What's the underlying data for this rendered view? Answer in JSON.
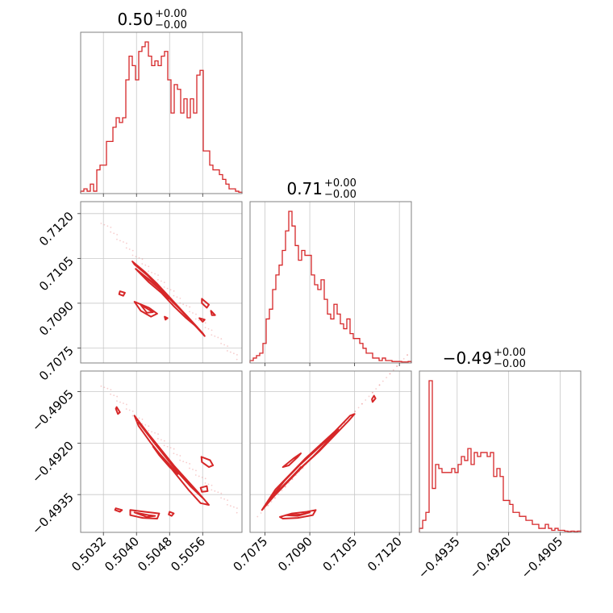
{
  "chart_data": {
    "type": "corner",
    "color": "#d62728",
    "parameters": [
      {
        "title": "0.50",
        "title_plus": "+0.00",
        "title_minus": "−0.00",
        "range": [
          0.50265,
          0.50655
        ],
        "ticks": [
          0.5032,
          0.504,
          0.5048,
          0.5056
        ],
        "tick_labels": [
          "0.5032",
          "0.5040",
          "0.5048",
          "0.5056"
        ],
        "hist_counts": [
          0.5,
          1,
          0.5,
          2,
          0.5,
          5,
          6,
          6,
          11,
          11,
          14,
          16,
          15,
          16,
          24,
          29,
          27,
          24,
          30,
          31,
          32,
          29,
          27,
          28,
          27,
          29,
          30,
          24,
          17,
          23,
          22,
          17,
          20,
          16,
          20,
          17,
          25,
          26,
          9,
          9,
          6,
          5,
          5,
          4,
          3,
          2,
          1,
          1,
          0.5,
          0.3
        ]
      },
      {
        "title": "0.71",
        "title_plus": "+0.00",
        "title_minus": "−0.00",
        "range": [
          0.707,
          0.7124
        ],
        "ticks": [
          0.7075,
          0.709,
          0.7105,
          0.712
        ],
        "tick_labels": [
          "0.7075",
          "0.7090",
          "0.7105",
          "0.7120"
        ],
        "hist_counts": [
          0.5,
          1,
          1.5,
          2,
          4,
          9,
          11,
          15,
          18,
          20,
          23,
          27,
          31,
          28,
          24,
          21,
          23,
          22,
          22,
          18,
          16,
          15,
          17,
          13,
          10,
          9,
          12,
          10,
          8,
          7,
          9,
          6,
          5,
          5,
          4,
          3,
          2,
          2,
          1,
          1,
          0.5,
          1,
          0.5,
          0.5,
          0.3,
          0.3,
          0.3,
          0.2,
          0.2,
          0.3
        ]
      },
      {
        "title": "−0.49",
        "title_plus": "+0.00",
        "title_minus": "−0.00",
        "range": [
          -0.4946,
          -0.4899
        ],
        "ticks": [
          -0.4935,
          -0.492,
          -0.4905
        ],
        "tick_labels": [
          "−0.4935",
          "−0.4920",
          "−0.4905"
        ],
        "hist_counts": [
          1,
          3,
          5,
          38,
          11,
          17,
          16,
          15,
          15,
          15,
          16,
          15,
          17,
          19,
          18,
          21,
          17,
          20,
          19,
          20,
          20,
          19,
          20,
          14,
          16,
          14,
          8,
          8,
          7,
          5,
          5,
          4,
          4,
          3,
          3,
          2,
          2,
          1,
          1,
          2,
          1,
          0.5,
          1,
          0.5,
          0.5,
          0.3,
          0.2,
          0.3,
          0.2,
          0.3
        ]
      }
    ],
    "pairs": [
      {
        "x_index": 0,
        "y_index": 1,
        "scatter_line": [
          [
            0.50318,
            0.71172
          ],
          [
            0.50645,
            0.70715
          ]
        ],
        "contours": [
          [
            [
              0.5039,
              0.7104
            ],
            [
              0.5042,
              0.71005
            ],
            [
              0.5045,
              0.70965
            ],
            [
              0.5048,
              0.7092
            ],
            [
              0.5051,
              0.70875
            ],
            [
              0.5054,
              0.7083
            ],
            [
              0.5056,
              0.708
            ],
            [
              0.50565,
              0.7079
            ],
            [
              0.50545,
              0.7082
            ],
            [
              0.50515,
              0.70865
            ],
            [
              0.50485,
              0.7091
            ],
            [
              0.50455,
              0.70955
            ],
            [
              0.50425,
              0.70995
            ],
            [
              0.50395,
              0.7103
            ],
            [
              0.5039,
              0.7104
            ]
          ],
          [
            [
              0.50398,
              0.71015
            ],
            [
              0.5043,
              0.7098
            ],
            [
              0.5046,
              0.70945
            ],
            [
              0.5049,
              0.709
            ],
            [
              0.5052,
              0.7086
            ],
            [
              0.50548,
              0.70818
            ],
            [
              0.5052,
              0.7085
            ],
            [
              0.5049,
              0.7089
            ],
            [
              0.5046,
              0.70935
            ],
            [
              0.5043,
              0.7097
            ],
            [
              0.50398,
              0.71015
            ]
          ],
          [
            [
              0.5042,
              0.7099
            ],
            [
              0.5045,
              0.70955
            ],
            [
              0.50478,
              0.70915
            ],
            [
              0.5047,
              0.7093
            ],
            [
              0.50445,
              0.7096
            ],
            [
              0.5042,
              0.7099
            ]
          ],
          [
            [
              0.5036,
              0.7094
            ],
            [
              0.50372,
              0.70935
            ],
            [
              0.50368,
              0.70925
            ],
            [
              0.50358,
              0.7093
            ],
            [
              0.5036,
              0.7094
            ]
          ],
          [
            [
              0.50395,
              0.70905
            ],
            [
              0.5043,
              0.70885
            ],
            [
              0.5045,
              0.70865
            ],
            [
              0.50435,
              0.70855
            ],
            [
              0.5041,
              0.70875
            ],
            [
              0.50395,
              0.70905
            ]
          ],
          [
            [
              0.5041,
              0.70895
            ],
            [
              0.5044,
              0.7087
            ],
            [
              0.50425,
              0.70868
            ],
            [
              0.5041,
              0.70895
            ]
          ],
          [
            [
              0.50468,
              0.70855
            ],
            [
              0.50475,
              0.7085
            ],
            [
              0.5047,
              0.70845
            ],
            [
              0.50468,
              0.70855
            ]
          ],
          [
            [
              0.50558,
              0.70915
            ],
            [
              0.50575,
              0.70895
            ],
            [
              0.5057,
              0.70885
            ],
            [
              0.50558,
              0.709
            ],
            [
              0.50558,
              0.70915
            ]
          ],
          [
            [
              0.5058,
              0.70875
            ],
            [
              0.5059,
              0.7086
            ],
            [
              0.50582,
              0.7086
            ],
            [
              0.5058,
              0.70875
            ]
          ],
          [
            [
              0.50552,
              0.7085
            ],
            [
              0.50565,
              0.70845
            ],
            [
              0.5056,
              0.70838
            ],
            [
              0.50552,
              0.7085
            ]
          ]
        ]
      },
      {
        "x_index": 0,
        "y_index": 2,
        "scatter_line": [
          [
            0.50318,
            -0.4903
          ],
          [
            0.50645,
            -0.494
          ]
        ],
        "contours": [
          [
            [
              0.50395,
              -0.4912
            ],
            [
              0.5043,
              -0.49175
            ],
            [
              0.5046,
              -0.4922
            ],
            [
              0.5049,
              -0.49265
            ],
            [
              0.5052,
              -0.49305
            ],
            [
              0.5055,
              -0.49345
            ],
            [
              0.50575,
              -0.4938
            ],
            [
              0.50555,
              -0.49375
            ],
            [
              0.50525,
              -0.49335
            ],
            [
              0.50495,
              -0.4929
            ],
            [
              0.50465,
              -0.49245
            ],
            [
              0.50435,
              -0.492
            ],
            [
              0.50405,
              -0.4915
            ],
            [
              0.50395,
              -0.4912
            ]
          ],
          [
            [
              0.50405,
              -0.4914
            ],
            [
              0.5044,
              -0.4919
            ],
            [
              0.5047,
              -0.49235
            ],
            [
              0.505,
              -0.4928
            ],
            [
              0.5053,
              -0.4932
            ],
            [
              0.5056,
              -0.4936
            ],
            [
              0.5053,
              -0.49325
            ],
            [
              0.505,
              -0.49285
            ],
            [
              0.5047,
              -0.4924
            ],
            [
              0.5044,
              -0.49195
            ],
            [
              0.50405,
              -0.4914
            ]
          ],
          [
            [
              0.5044,
              -0.4921
            ],
            [
              0.5047,
              -0.4925
            ],
            [
              0.505,
              -0.4929
            ],
            [
              0.5048,
              -0.4927
            ],
            [
              0.50455,
              -0.49235
            ],
            [
              0.5044,
              -0.4921
            ]
          ],
          [
            [
              0.50352,
              -0.49095
            ],
            [
              0.5036,
              -0.4911
            ],
            [
              0.50355,
              -0.49115
            ],
            [
              0.5035,
              -0.491
            ],
            [
              0.50352,
              -0.49095
            ]
          ],
          [
            [
              0.5035,
              -0.4939
            ],
            [
              0.50365,
              -0.49395
            ],
            [
              0.5036,
              -0.494
            ],
            [
              0.50348,
              -0.49395
            ],
            [
              0.5035,
              -0.4939
            ]
          ],
          [
            [
              0.50385,
              -0.49395
            ],
            [
              0.5042,
              -0.494
            ],
            [
              0.50455,
              -0.49405
            ],
            [
              0.5045,
              -0.4942
            ],
            [
              0.50415,
              -0.49418
            ],
            [
              0.50385,
              -0.4941
            ],
            [
              0.50385,
              -0.49395
            ]
          ],
          [
            [
              0.50395,
              -0.49402
            ],
            [
              0.5043,
              -0.4941
            ],
            [
              0.50445,
              -0.49412
            ],
            [
              0.50425,
              -0.49415
            ],
            [
              0.50395,
              -0.49402
            ]
          ],
          [
            [
              0.5048,
              -0.494
            ],
            [
              0.5049,
              -0.49405
            ],
            [
              0.50485,
              -0.49412
            ],
            [
              0.50478,
              -0.49408
            ],
            [
              0.5048,
              -0.494
            ]
          ],
          [
            [
              0.50557,
              -0.4924
            ],
            [
              0.50578,
              -0.4925
            ],
            [
              0.50585,
              -0.49265
            ],
            [
              0.50575,
              -0.4927
            ],
            [
              0.50558,
              -0.49255
            ],
            [
              0.50557,
              -0.4924
            ]
          ],
          [
            [
              0.50555,
              -0.4933
            ],
            [
              0.5057,
              -0.49325
            ],
            [
              0.50572,
              -0.4934
            ],
            [
              0.50558,
              -0.49342
            ],
            [
              0.50555,
              -0.4933
            ]
          ]
        ]
      },
      {
        "x_index": 1,
        "y_index": 2,
        "scatter_line": [
          [
            0.7073,
            -0.4941
          ],
          [
            0.7123,
            -0.4894
          ]
        ],
        "contours": [
          [
            [
              0.7074,
              -0.49395
            ],
            [
              0.7078,
              -0.49355
            ],
            [
              0.7083,
              -0.4931
            ],
            [
              0.7088,
              -0.49265
            ],
            [
              0.7093,
              -0.49225
            ],
            [
              0.7098,
              -0.4918
            ],
            [
              0.7103,
              -0.49135
            ],
            [
              0.7105,
              -0.49115
            ],
            [
              0.71035,
              -0.4912
            ],
            [
              0.70985,
              -0.49165
            ],
            [
              0.70935,
              -0.49205
            ],
            [
              0.70885,
              -0.49245
            ],
            [
              0.70835,
              -0.4929
            ],
            [
              0.70785,
              -0.49335
            ],
            [
              0.7074,
              -0.49395
            ]
          ],
          [
            [
              0.7076,
              -0.4937
            ],
            [
              0.7081,
              -0.49325
            ],
            [
              0.7086,
              -0.4928
            ],
            [
              0.7091,
              -0.4924
            ],
            [
              0.7096,
              -0.49195
            ],
            [
              0.70995,
              -0.4916
            ],
            [
              0.70965,
              -0.49185
            ],
            [
              0.70915,
              -0.49225
            ],
            [
              0.70865,
              -0.49265
            ],
            [
              0.70815,
              -0.4931
            ],
            [
              0.7076,
              -0.4937
            ]
          ],
          [
            [
              0.708,
              -0.49335
            ],
            [
              0.7084,
              -0.493
            ],
            [
              0.7087,
              -0.4927
            ],
            [
              0.7085,
              -0.4929
            ],
            [
              0.708,
              -0.49335
            ]
          ],
          [
            [
              0.7111,
              -0.4908
            ],
            [
              0.7112,
              -0.4907
            ],
            [
              0.71115,
              -0.49062
            ],
            [
              0.71108,
              -0.49072
            ],
            [
              0.7111,
              -0.4908
            ]
          ],
          [
            [
              0.7081,
              -0.4927
            ],
            [
              0.70845,
              -0.49245
            ],
            [
              0.7087,
              -0.4923
            ],
            [
              0.7086,
              -0.4924
            ],
            [
              0.7083,
              -0.49265
            ],
            [
              0.7081,
              -0.4927
            ]
          ],
          [
            [
              0.708,
              -0.49415
            ],
            [
              0.7084,
              -0.49405
            ],
            [
              0.7089,
              -0.494
            ],
            [
              0.7092,
              -0.49395
            ],
            [
              0.7091,
              -0.4941
            ],
            [
              0.7086,
              -0.49418
            ],
            [
              0.7081,
              -0.4942
            ],
            [
              0.708,
              -0.49415
            ]
          ],
          [
            [
              0.7082,
              -0.4941
            ],
            [
              0.7087,
              -0.49408
            ],
            [
              0.709,
              -0.49402
            ],
            [
              0.7086,
              -0.49412
            ],
            [
              0.7082,
              -0.4941
            ]
          ]
        ]
      }
    ]
  }
}
